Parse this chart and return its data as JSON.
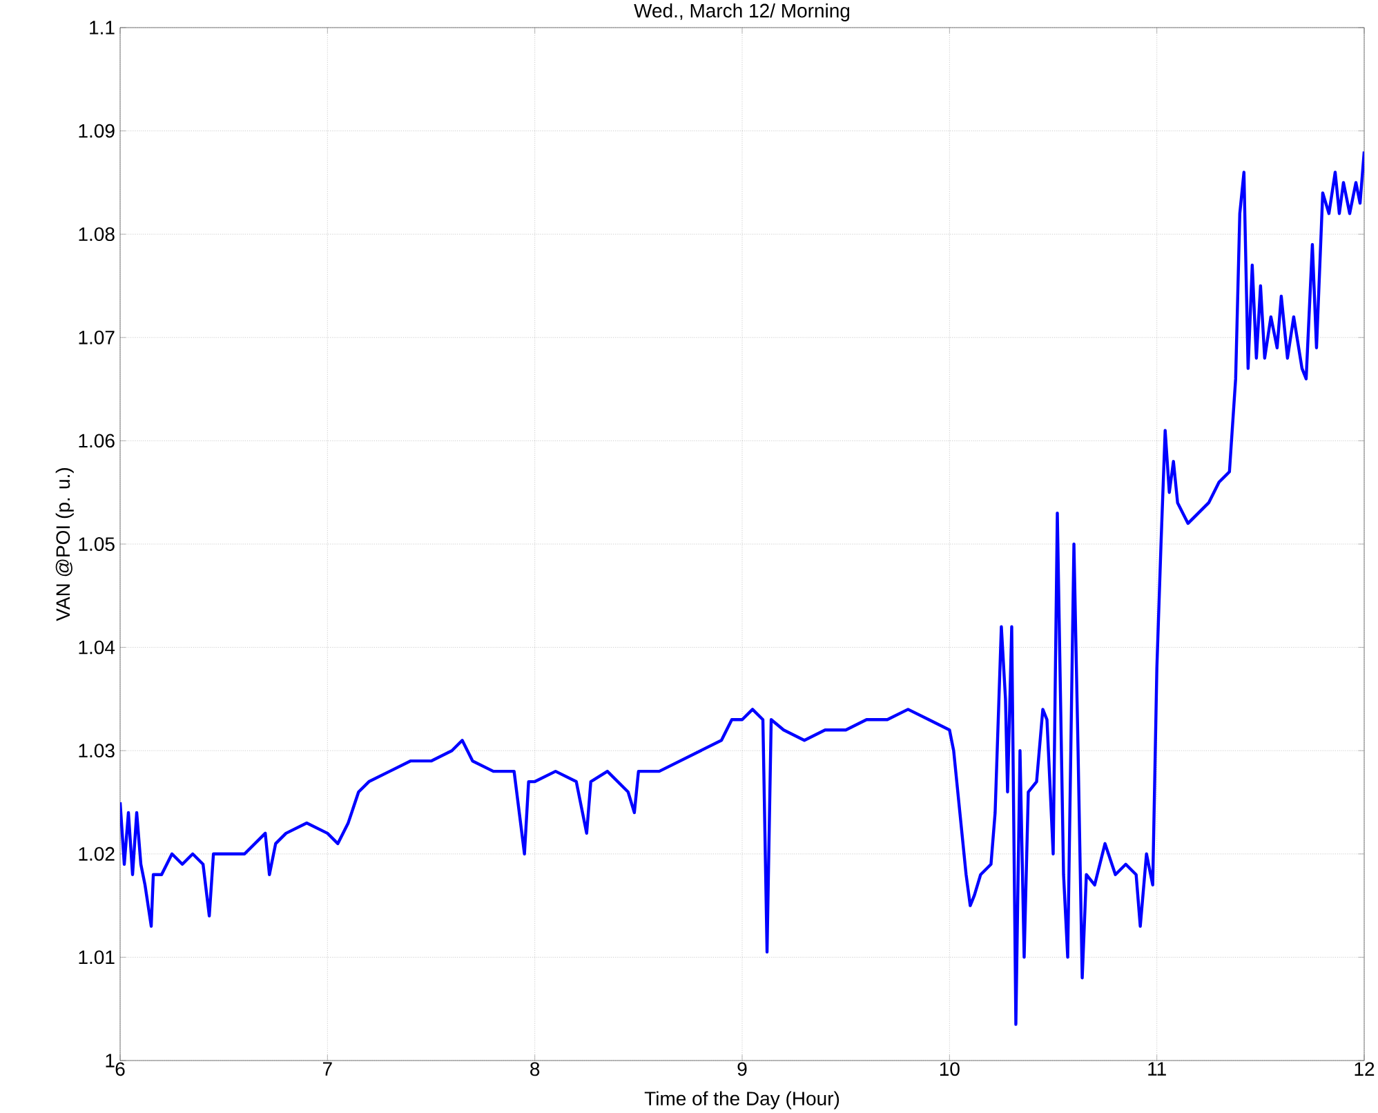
{
  "chart_data": {
    "type": "line",
    "title": "Wed., March 12/ Morning",
    "xlabel": "Time of the Day (Hour)",
    "ylabel": "VAN @POI (p. u.)",
    "xlim": [
      6,
      12
    ],
    "ylim": [
      1,
      1.1
    ],
    "xticks": [
      6,
      7,
      8,
      9,
      10,
      11,
      12
    ],
    "yticks": [
      1,
      1.01,
      1.02,
      1.03,
      1.04,
      1.05,
      1.06,
      1.07,
      1.08,
      1.09,
      1.1
    ],
    "grid": true,
    "line_style": "solid",
    "marker": "none",
    "series": [
      {
        "color": "#0000ff",
        "x": [
          6.0,
          6.02,
          6.04,
          6.06,
          6.08,
          6.1,
          6.12,
          6.15,
          6.16,
          6.2,
          6.25,
          6.3,
          6.35,
          6.4,
          6.43,
          6.45,
          6.5,
          6.6,
          6.65,
          6.7,
          6.72,
          6.75,
          6.8,
          6.9,
          7.0,
          7.05,
          7.1,
          7.15,
          7.2,
          7.3,
          7.4,
          7.5,
          7.6,
          7.65,
          7.7,
          7.8,
          7.9,
          7.95,
          7.97,
          8.0,
          8.1,
          8.2,
          8.25,
          8.27,
          8.35,
          8.45,
          8.48,
          8.5,
          8.6,
          8.7,
          8.8,
          8.9,
          8.95,
          9.0,
          9.05,
          9.1,
          9.12,
          9.14,
          9.2,
          9.3,
          9.4,
          9.5,
          9.6,
          9.7,
          9.8,
          9.9,
          10.0,
          10.02,
          10.05,
          10.08,
          10.1,
          10.12,
          10.15,
          10.2,
          10.22,
          10.25,
          10.27,
          10.28,
          10.3,
          10.32,
          10.34,
          10.36,
          10.38,
          10.42,
          10.45,
          10.47,
          10.5,
          10.52,
          10.55,
          10.57,
          10.6,
          10.62,
          10.64,
          10.66,
          10.7,
          10.75,
          10.8,
          10.85,
          10.9,
          10.92,
          10.95,
          10.98,
          11.0,
          11.02,
          11.04,
          11.06,
          11.08,
          11.1,
          11.15,
          11.2,
          11.25,
          11.3,
          11.35,
          11.38,
          11.4,
          11.42,
          11.44,
          11.46,
          11.48,
          11.5,
          11.52,
          11.55,
          11.58,
          11.6,
          11.63,
          11.66,
          11.7,
          11.72,
          11.75,
          11.77,
          11.8,
          11.83,
          11.86,
          11.88,
          11.9,
          11.93,
          11.96,
          11.98,
          12.0
        ],
        "values": [
          1.025,
          1.019,
          1.024,
          1.018,
          1.024,
          1.019,
          1.017,
          1.013,
          1.018,
          1.018,
          1.02,
          1.019,
          1.02,
          1.019,
          1.014,
          1.02,
          1.02,
          1.02,
          1.021,
          1.022,
          1.018,
          1.021,
          1.022,
          1.023,
          1.022,
          1.021,
          1.023,
          1.026,
          1.027,
          1.028,
          1.029,
          1.029,
          1.03,
          1.031,
          1.029,
          1.028,
          1.028,
          1.02,
          1.027,
          1.027,
          1.028,
          1.027,
          1.022,
          1.027,
          1.028,
          1.026,
          1.024,
          1.028,
          1.028,
          1.029,
          1.03,
          1.031,
          1.033,
          1.033,
          1.034,
          1.033,
          1.0105,
          1.033,
          1.032,
          1.031,
          1.032,
          1.032,
          1.033,
          1.033,
          1.034,
          1.033,
          1.032,
          1.03,
          1.024,
          1.018,
          1.015,
          1.016,
          1.018,
          1.019,
          1.024,
          1.042,
          1.035,
          1.026,
          1.042,
          1.0035,
          1.03,
          1.01,
          1.026,
          1.027,
          1.034,
          1.033,
          1.02,
          1.053,
          1.018,
          1.01,
          1.05,
          1.03,
          1.008,
          1.018,
          1.017,
          1.021,
          1.018,
          1.019,
          1.018,
          1.013,
          1.02,
          1.017,
          1.038,
          1.05,
          1.061,
          1.055,
          1.058,
          1.054,
          1.052,
          1.053,
          1.054,
          1.056,
          1.057,
          1.066,
          1.082,
          1.086,
          1.067,
          1.077,
          1.068,
          1.075,
          1.068,
          1.072,
          1.069,
          1.074,
          1.068,
          1.072,
          1.067,
          1.066,
          1.079,
          1.069,
          1.084,
          1.082,
          1.086,
          1.082,
          1.085,
          1.082,
          1.085,
          1.083,
          1.088
        ]
      }
    ]
  }
}
